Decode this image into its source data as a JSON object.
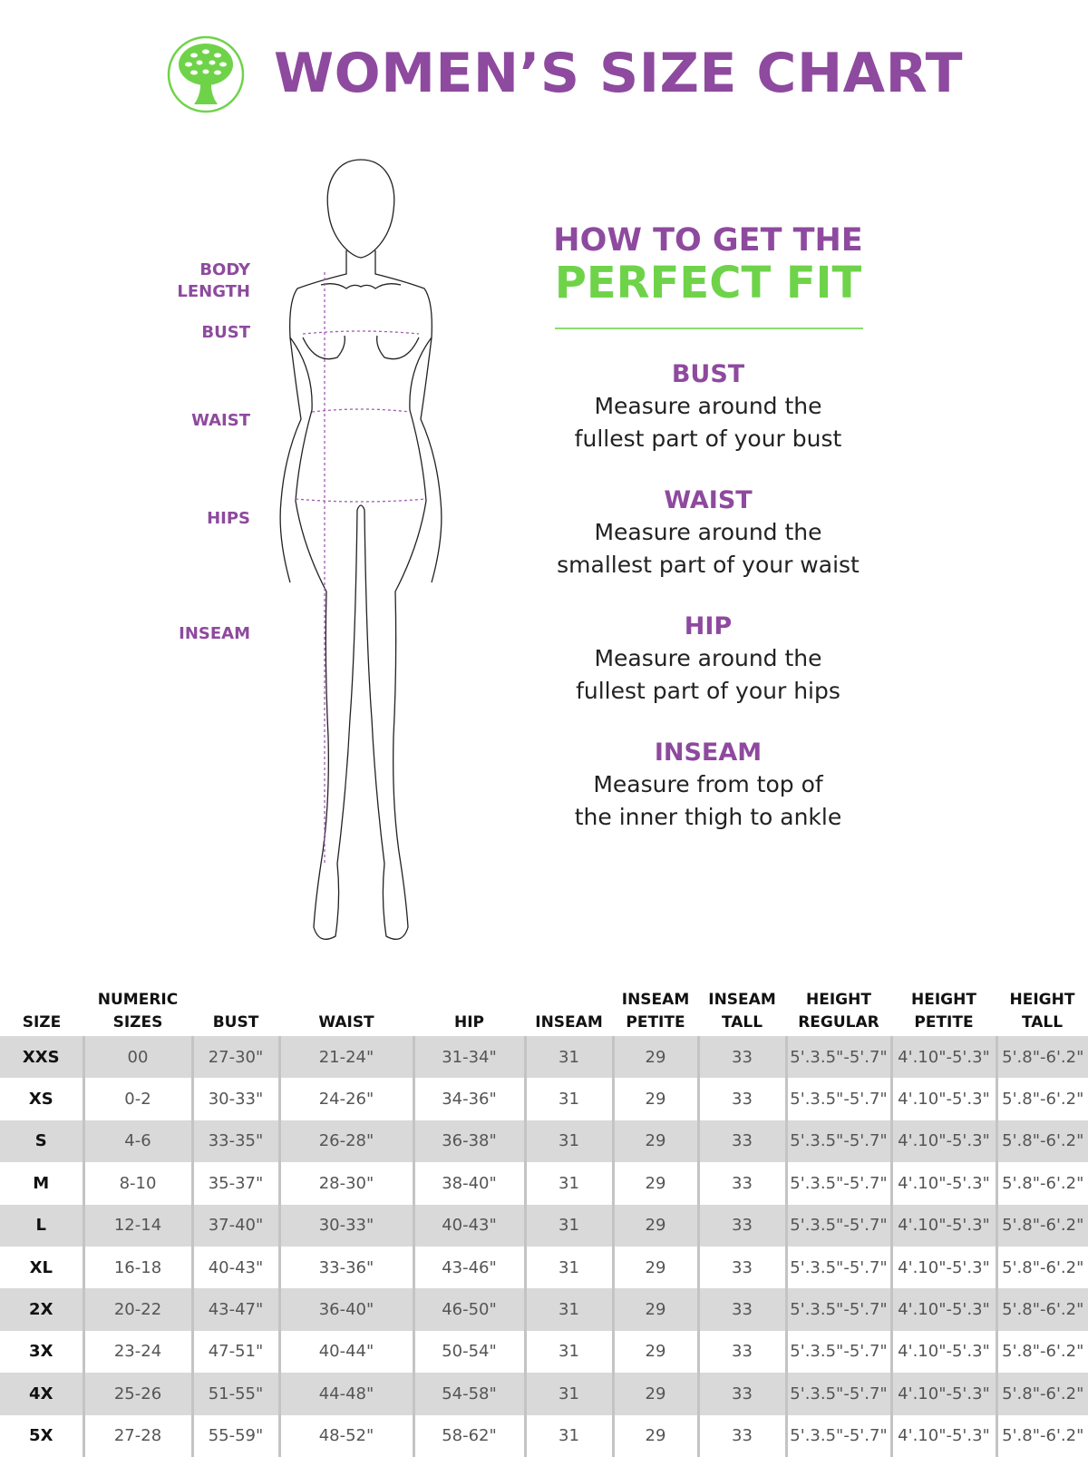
{
  "header": {
    "title": "WOMEN’S SIZE CHART",
    "logo_icon": "tree-logo-icon"
  },
  "figure_labels": {
    "body_length": "BODY LENGTH",
    "bust": "BUST",
    "waist": "WAIST",
    "hips": "HIPS",
    "inseam": "INSEAM"
  },
  "guide": {
    "heading_line1": "HOW TO GET THE",
    "heading_line2": "PERFECT FIT",
    "sections": [
      {
        "title": "BUST",
        "line1": "Measure around the",
        "line2": "fullest part of your bust"
      },
      {
        "title": "WAIST",
        "line1": "Measure around the",
        "line2": "smallest part of your waist"
      },
      {
        "title": "HIP",
        "line1": "Measure around the",
        "line2": "fullest part of your hips"
      },
      {
        "title": "INSEAM",
        "line1": "Measure from top of",
        "line2": "the inner thigh to ankle"
      }
    ]
  },
  "colors": {
    "purple": "#8e4a9e",
    "green": "#6fd34a",
    "row_shade": "#d9d9d9"
  },
  "table": {
    "headers": [
      [
        "SIZE",
        ""
      ],
      [
        "NUMERIC",
        "SIZES"
      ],
      [
        "BUST",
        ""
      ],
      [
        "WAIST",
        ""
      ],
      [
        "HIP",
        ""
      ],
      [
        "INSEAM",
        ""
      ],
      [
        "INSEAM",
        "PETITE"
      ],
      [
        "INSEAM",
        "TALL"
      ],
      [
        "HEIGHT",
        "REGULAR"
      ],
      [
        "HEIGHT",
        "PETITE"
      ],
      [
        "HEIGHT",
        "TALL"
      ]
    ],
    "rows": [
      [
        "XXS",
        "00",
        "27-30\"",
        "21-24\"",
        "31-34\"",
        "31",
        "29",
        "33",
        "5'.3.5\"-5'.7\"",
        "4'.10\"-5'.3\"",
        "5'.8\"-6'.2\""
      ],
      [
        "XS",
        "0-2",
        "30-33\"",
        "24-26\"",
        "34-36\"",
        "31",
        "29",
        "33",
        "5'.3.5\"-5'.7\"",
        "4'.10\"-5'.3\"",
        "5'.8\"-6'.2\""
      ],
      [
        "S",
        "4-6",
        "33-35\"",
        "26-28\"",
        "36-38\"",
        "31",
        "29",
        "33",
        "5'.3.5\"-5'.7\"",
        "4'.10\"-5'.3\"",
        "5'.8\"-6'.2\""
      ],
      [
        "M",
        "8-10",
        "35-37\"",
        "28-30\"",
        "38-40\"",
        "31",
        "29",
        "33",
        "5'.3.5\"-5'.7\"",
        "4'.10\"-5'.3\"",
        "5'.8\"-6'.2\""
      ],
      [
        "L",
        "12-14",
        "37-40\"",
        "30-33\"",
        "40-43\"",
        "31",
        "29",
        "33",
        "5'.3.5\"-5'.7\"",
        "4'.10\"-5'.3\"",
        "5'.8\"-6'.2\""
      ],
      [
        "XL",
        "16-18",
        "40-43\"",
        "33-36\"",
        "43-46\"",
        "31",
        "29",
        "33",
        "5'.3.5\"-5'.7\"",
        "4'.10\"-5'.3\"",
        "5'.8\"-6'.2\""
      ],
      [
        "2X",
        "20-22",
        "43-47\"",
        "36-40\"",
        "46-50\"",
        "31",
        "29",
        "33",
        "5'.3.5\"-5'.7\"",
        "4'.10\"-5'.3\"",
        "5'.8\"-6'.2\""
      ],
      [
        "3X",
        "23-24",
        "47-51\"",
        "40-44\"",
        "50-54\"",
        "31",
        "29",
        "33",
        "5'.3.5\"-5'.7\"",
        "4'.10\"-5'.3\"",
        "5'.8\"-6'.2\""
      ],
      [
        "4X",
        "25-26",
        "51-55\"",
        "44-48\"",
        "54-58\"",
        "31",
        "29",
        "33",
        "5'.3.5\"-5'.7\"",
        "4'.10\"-5'.3\"",
        "5'.8\"-6'.2\""
      ],
      [
        "5X",
        "27-28",
        "55-59\"",
        "48-52\"",
        "58-62\"",
        "31",
        "29",
        "33",
        "5'.3.5\"-5'.7\"",
        "4'.10\"-5'.3\"",
        "5'.8\"-6'.2\""
      ]
    ]
  }
}
